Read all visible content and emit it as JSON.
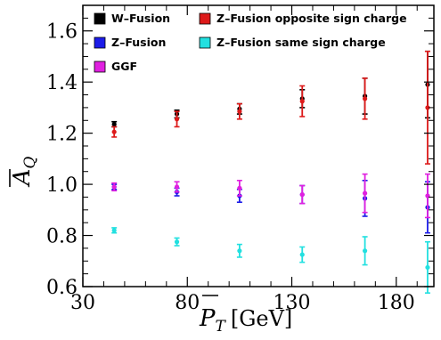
{
  "chart_data": {
    "type": "scatter",
    "xlabel": "P̄_T [GeV]",
    "ylabel": "Ā_Q",
    "xlim": [
      30,
      198
    ],
    "ylim": [
      0.6,
      1.7
    ],
    "x_ticks": [
      30,
      80,
      130,
      180
    ],
    "y_ticks": [
      0.6,
      0.8,
      1.0,
      1.2,
      1.4,
      1.6
    ],
    "x_tick_labels": [
      "30",
      "80",
      "130",
      "180"
    ],
    "y_tick_labels": [
      "0.6",
      "0.8",
      "1.0",
      "1.2",
      "1.4",
      "1.6"
    ],
    "grid": false,
    "legend_placement": "top",
    "series": [
      {
        "name": "W–Fusion",
        "color": "#000000",
        "points": [
          {
            "x": 45,
            "y": 1.235,
            "err": 0.01
          },
          {
            "x": 75,
            "y": 1.275,
            "err": 0.015
          },
          {
            "x": 105,
            "y": 1.295,
            "err": 0.02
          },
          {
            "x": 135,
            "y": 1.335,
            "err": 0.035
          },
          {
            "x": 165,
            "y": 1.345,
            "err": 0.07
          },
          {
            "x": 195,
            "y": 1.39,
            "err": 0.13
          }
        ]
      },
      {
        "name": "Z–Fusion opposite sign charge",
        "color": "#dd1a1a",
        "points": [
          {
            "x": 45,
            "y": 1.205,
            "err": 0.02
          },
          {
            "x": 75,
            "y": 1.255,
            "err": 0.03
          },
          {
            "x": 105,
            "y": 1.285,
            "err": 0.03
          },
          {
            "x": 135,
            "y": 1.325,
            "err": 0.06
          },
          {
            "x": 165,
            "y": 1.335,
            "err": 0.08
          },
          {
            "x": 195,
            "y": 1.3,
            "err": 0.22
          }
        ]
      },
      {
        "name": "Z–Fusion",
        "color": "#1c1ce8",
        "points": [
          {
            "x": 45,
            "y": 0.99,
            "err": 0.01
          },
          {
            "x": 75,
            "y": 0.97,
            "err": 0.015
          },
          {
            "x": 105,
            "y": 0.955,
            "err": 0.025
          },
          {
            "x": 135,
            "y": 0.96,
            "err": 0.035
          },
          {
            "x": 165,
            "y": 0.945,
            "err": 0.07
          },
          {
            "x": 195,
            "y": 0.91,
            "err": 0.1
          }
        ]
      },
      {
        "name": "Z–Fusion same sign charge",
        "color": "#22e0e0",
        "points": [
          {
            "x": 45,
            "y": 0.82,
            "err": 0.01
          },
          {
            "x": 75,
            "y": 0.775,
            "err": 0.015
          },
          {
            "x": 105,
            "y": 0.74,
            "err": 0.025
          },
          {
            "x": 135,
            "y": 0.725,
            "err": 0.03
          },
          {
            "x": 165,
            "y": 0.74,
            "err": 0.055
          },
          {
            "x": 195,
            "y": 0.675,
            "err": 0.1
          }
        ]
      },
      {
        "name": "GGF",
        "color": "#e020e0",
        "points": [
          {
            "x": 45,
            "y": 0.99,
            "err": 0.015
          },
          {
            "x": 75,
            "y": 0.99,
            "err": 0.02
          },
          {
            "x": 105,
            "y": 0.985,
            "err": 0.03
          },
          {
            "x": 135,
            "y": 0.96,
            "err": 0.035
          },
          {
            "x": 165,
            "y": 0.965,
            "err": 0.075
          },
          {
            "x": 195,
            "y": 0.955,
            "err": 0.085
          }
        ]
      }
    ],
    "legend": {
      "col1": [
        "W–Fusion",
        "Z–Fusion",
        "GGF"
      ],
      "col2": [
        "Z–Fusion opposite sign charge",
        "Z–Fusion same sign charge"
      ]
    }
  }
}
